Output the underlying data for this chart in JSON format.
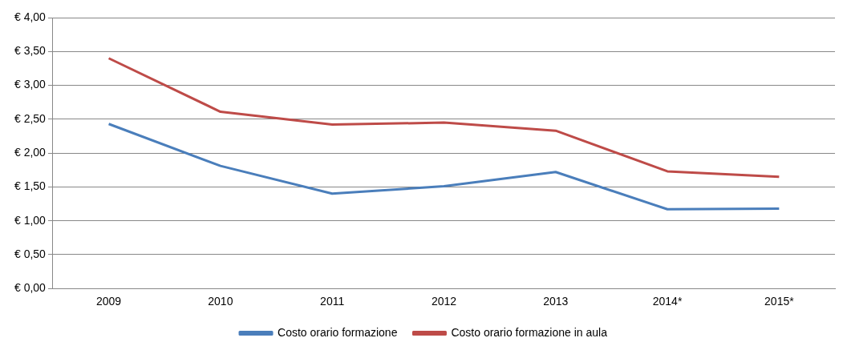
{
  "chart_data": {
    "type": "line",
    "categories": [
      "2009",
      "2010",
      "2011",
      "2012",
      "2013",
      "2014*",
      "2015*"
    ],
    "series": [
      {
        "name": "Costo orario formazione",
        "color": "#4a7ebb",
        "values": [
          2.43,
          1.81,
          1.4,
          1.51,
          1.72,
          1.17,
          1.18
        ]
      },
      {
        "name": "Costo orario formazione in aula",
        "color": "#be4b48",
        "values": [
          3.4,
          2.61,
          2.42,
          2.45,
          2.33,
          1.73,
          1.65
        ]
      }
    ],
    "ylim": [
      0,
      4
    ],
    "yticks": [
      {
        "value": 0,
        "label": "€ 0,00"
      },
      {
        "value": 0.5,
        "label": "€ 0,50"
      },
      {
        "value": 1,
        "label": "€ 1,00"
      },
      {
        "value": 1.5,
        "label": "€ 1,50"
      },
      {
        "value": 2,
        "label": "€ 2,00"
      },
      {
        "value": 2.5,
        "label": "€ 2,50"
      },
      {
        "value": 3,
        "label": "€ 3,00"
      },
      {
        "value": 3.5,
        "label": "€ 3,50"
      },
      {
        "value": 4,
        "label": "€ 4,00"
      }
    ],
    "grid": "y",
    "legend": "bottom",
    "marker": "none",
    "line_style": "solid"
  }
}
